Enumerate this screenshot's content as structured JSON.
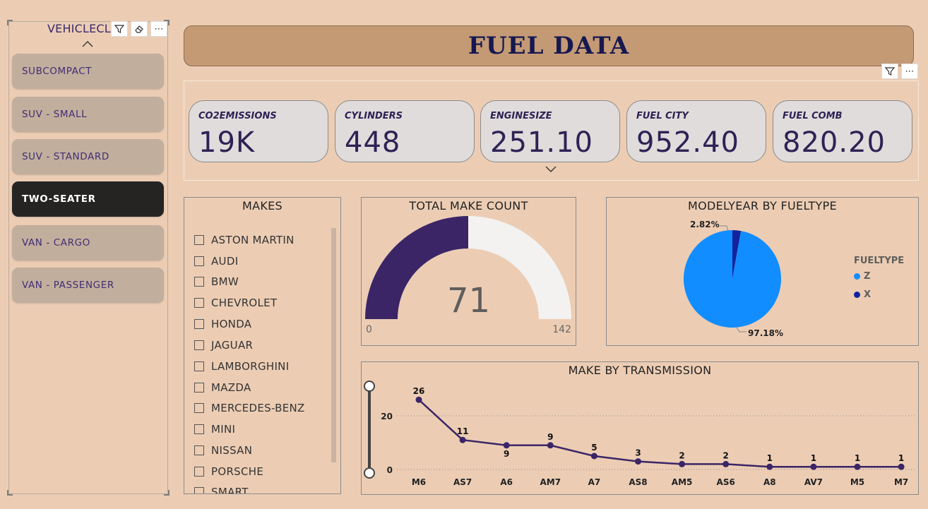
{
  "slicer": {
    "title": "VEHICLECLASS",
    "items": [
      {
        "label": "SUBCOMPACT",
        "selected": false
      },
      {
        "label": "SUV - SMALL",
        "selected": false
      },
      {
        "label": "SUV - STANDARD",
        "selected": false
      },
      {
        "label": "TWO-SEATER",
        "selected": true
      },
      {
        "label": "VAN - CARGO",
        "selected": false
      },
      {
        "label": "VAN - PASSENGER",
        "selected": false
      }
    ]
  },
  "title": "FUEL DATA",
  "kpis": [
    {
      "label": "CO2EMISSIONS",
      "value": "19K"
    },
    {
      "label": "CYLINDERS",
      "value": "448"
    },
    {
      "label": "ENGINESIZE",
      "value": "251.10"
    },
    {
      "label": "FUEL CITY",
      "value": "952.40"
    },
    {
      "label": "FUEL COMB",
      "value": "820.20"
    }
  ],
  "makes": {
    "title": "MAKES",
    "items": [
      "ASTON MARTIN",
      "AUDI",
      "BMW",
      "CHEVROLET",
      "HONDA",
      "JAGUAR",
      "LAMBORGHINI",
      "MAZDA",
      "MERCEDES-BENZ",
      "MINI",
      "NISSAN",
      "PORSCHE",
      "SMART"
    ]
  },
  "gauge": {
    "title": "TOTAL MAKE COUNT",
    "value": 71,
    "min": 0,
    "max": 142,
    "fill_color": "#3b2566",
    "track_color": "#f3f2f1"
  },
  "colors": {
    "accent": "#2e2254",
    "background": "#eccdb4",
    "selected_button": "#252423"
  },
  "chart_data": [
    {
      "type": "pie",
      "title": "MODELYEAR BY FUELTYPE",
      "legend_title": "FUELTYPE",
      "legend_position": "right",
      "slices": [
        {
          "label": "Z",
          "value": 97.18,
          "display": "97.18%",
          "color": "#118dff"
        },
        {
          "label": "X",
          "value": 2.82,
          "display": "2.82%",
          "color": "#12239e"
        }
      ]
    },
    {
      "type": "line",
      "title": "MAKE BY TRANSMISSION",
      "x": [
        "M6",
        "AS7",
        "A6",
        "AM7",
        "A7",
        "AS8",
        "AM5",
        "AS6",
        "A8",
        "AV7",
        "M5",
        "M7"
      ],
      "values": [
        26,
        11,
        9,
        9,
        5,
        3,
        2,
        2,
        1,
        1,
        1,
        1
      ],
      "y_ticks": [
        0,
        20
      ],
      "ylim": [
        0,
        27
      ],
      "grid": true,
      "line_color": "#3b2566"
    }
  ]
}
